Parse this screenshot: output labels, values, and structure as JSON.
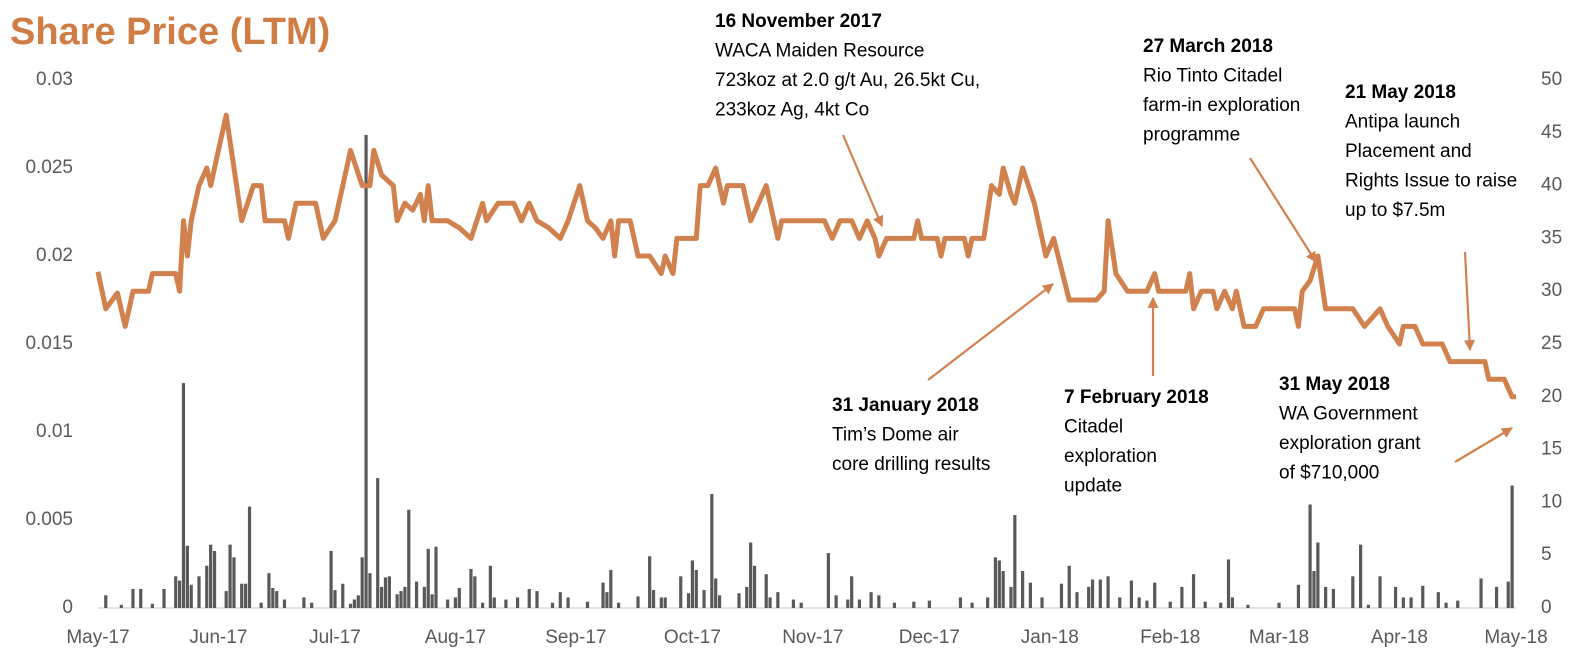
{
  "chart_data": {
    "type": "combo",
    "title": "Share Price (LTM)",
    "title_color": "#d07d45",
    "xlim": [
      0,
      365
    ],
    "xticks": [
      {
        "value": 0,
        "label": "May-17"
      },
      {
        "value": 31,
        "label": "Jun-17"
      },
      {
        "value": 61,
        "label": "Jul-17"
      },
      {
        "value": 92,
        "label": "Aug-17"
      },
      {
        "value": 123,
        "label": "Sep-17"
      },
      {
        "value": 153,
        "label": "Oct-17"
      },
      {
        "value": 184,
        "label": "Nov-17"
      },
      {
        "value": 214,
        "label": "Dec-17"
      },
      {
        "value": 245,
        "label": "Jan-18"
      },
      {
        "value": 276,
        "label": "Feb-18"
      },
      {
        "value": 304,
        "label": "Mar-18"
      },
      {
        "value": 335,
        "label": "Apr-18"
      },
      {
        "value": 365,
        "label": "May-18"
      }
    ],
    "ylim": [
      0,
      0.03
    ],
    "yticks": [
      0,
      0.005,
      0.01,
      0.015,
      0.02,
      0.025,
      0.03
    ],
    "y2lim": [
      0,
      50
    ],
    "y2ticks": [
      0,
      5,
      10,
      15,
      20,
      25,
      30,
      35,
      40,
      45,
      50
    ],
    "series": [
      {
        "type": "line",
        "color": "#d0814e",
        "x": [
          0,
          2,
          5,
          7,
          9,
          13,
          14,
          20,
          21,
          22,
          23,
          24,
          26,
          28,
          29,
          31,
          33,
          35,
          37,
          40,
          42,
          43,
          48,
          49,
          51,
          56,
          58,
          61,
          63,
          65,
          68,
          70,
          71,
          73,
          76,
          77,
          79,
          81,
          83,
          84,
          85,
          86,
          90,
          93,
          96,
          99,
          100,
          103,
          107,
          109,
          111,
          113,
          116,
          119,
          121,
          124,
          126,
          128,
          130,
          132,
          133,
          134,
          137,
          139,
          142,
          145,
          146,
          148,
          149,
          154,
          155,
          157,
          159,
          161,
          162,
          166,
          168,
          172,
          175,
          176,
          187,
          189,
          191,
          194,
          196,
          198,
          200,
          201,
          203,
          210,
          211,
          212,
          216,
          217,
          218,
          223,
          224,
          225,
          228,
          230,
          232,
          233,
          235,
          236,
          238,
          241,
          244,
          246,
          250,
          257,
          259,
          260,
          262,
          265,
          270,
          272,
          273,
          280,
          281,
          282,
          284,
          287,
          288,
          290,
          292,
          293,
          295,
          298,
          300,
          308,
          309,
          310,
          312,
          314,
          316,
          323,
          326,
          330,
          332,
          335,
          336,
          339,
          341,
          346,
          348,
          357,
          358,
          362,
          364,
          365
        ],
        "values": [
          0.0191,
          0.017,
          0.0179,
          0.016,
          0.018,
          0.018,
          0.019,
          0.019,
          0.018,
          0.022,
          0.02,
          0.022,
          0.024,
          0.025,
          0.024,
          0.026,
          0.028,
          0.025,
          0.022,
          0.024,
          0.024,
          0.022,
          0.022,
          0.021,
          0.023,
          0.023,
          0.021,
          0.022,
          0.024,
          0.026,
          0.024,
          0.024,
          0.026,
          0.0246,
          0.024,
          0.022,
          0.023,
          0.0226,
          0.0235,
          0.022,
          0.024,
          0.022,
          0.022,
          0.0216,
          0.021,
          0.023,
          0.022,
          0.023,
          0.023,
          0.022,
          0.023,
          0.022,
          0.0216,
          0.021,
          0.022,
          0.024,
          0.022,
          0.0216,
          0.021,
          0.022,
          0.02,
          0.022,
          0.022,
          0.02,
          0.02,
          0.019,
          0.02,
          0.019,
          0.021,
          0.021,
          0.024,
          0.024,
          0.025,
          0.023,
          0.024,
          0.024,
          0.022,
          0.024,
          0.021,
          0.022,
          0.022,
          0.021,
          0.022,
          0.022,
          0.021,
          0.022,
          0.021,
          0.02,
          0.021,
          0.021,
          0.022,
          0.021,
          0.021,
          0.02,
          0.021,
          0.021,
          0.02,
          0.021,
          0.021,
          0.024,
          0.0235,
          0.025,
          0.0235,
          0.023,
          0.025,
          0.023,
          0.02,
          0.021,
          0.0175,
          0.0175,
          0.018,
          0.022,
          0.019,
          0.018,
          0.018,
          0.019,
          0.018,
          0.018,
          0.019,
          0.017,
          0.018,
          0.018,
          0.017,
          0.018,
          0.017,
          0.018,
          0.016,
          0.016,
          0.017,
          0.017,
          0.016,
          0.018,
          0.0186,
          0.02,
          0.017,
          0.017,
          0.016,
          0.017,
          0.016,
          0.015,
          0.016,
          0.016,
          0.015,
          0.015,
          0.014,
          0.014,
          0.013,
          0.013,
          0.012,
          0.012
        ]
      },
      {
        "type": "bar",
        "axis": "y2",
        "color": "#595959",
        "x": [
          2,
          6,
          9,
          11,
          14,
          17,
          20,
          21,
          22,
          23,
          24,
          26,
          28,
          29,
          30,
          33,
          34,
          35,
          37,
          38,
          39,
          42,
          44,
          45,
          46,
          48,
          53,
          55,
          60,
          61,
          63,
          65,
          66,
          67,
          68,
          69,
          70,
          72,
          73,
          74,
          75,
          77,
          78,
          79,
          80,
          82,
          84,
          85,
          86,
          87,
          90,
          92,
          93,
          96,
          97,
          99,
          101,
          102,
          105,
          108,
          111,
          113,
          117,
          119,
          121,
          126,
          130,
          131,
          132,
          134,
          139,
          142,
          143,
          145,
          146,
          150,
          152,
          153,
          154,
          156,
          158,
          159,
          160,
          165,
          167,
          168,
          169,
          172,
          173,
          175,
          179,
          181,
          188,
          190,
          193,
          194,
          196,
          199,
          201,
          205,
          210,
          214,
          222,
          225,
          229,
          231,
          232,
          233,
          235,
          236,
          238,
          240,
          243,
          248,
          250,
          252,
          255,
          256,
          258,
          260,
          263,
          266,
          268,
          270,
          272,
          276,
          279,
          282,
          285,
          289,
          291,
          292,
          296,
          304,
          309,
          312,
          313,
          314,
          316,
          318,
          323,
          325,
          327,
          330,
          334,
          336,
          338,
          341,
          345,
          347,
          350,
          356,
          360,
          363,
          364
        ],
        "values": [
          1.2,
          0.3,
          1.8,
          1.8,
          0.4,
          1.8,
          3.0,
          2.6,
          21.3,
          5.9,
          2.2,
          3.0,
          4.0,
          6.0,
          5.4,
          1.6,
          6.0,
          4.8,
          2.3,
          2.3,
          9.6,
          0.5,
          3.3,
          1.9,
          1.6,
          0.8,
          1.0,
          0.5,
          5.4,
          1.7,
          2.3,
          0.4,
          0.8,
          1.2,
          4.8,
          44.8,
          3.3,
          12.3,
          2.0,
          2.9,
          3.0,
          1.3,
          1.6,
          2.0,
          9.3,
          2.5,
          2.0,
          5.6,
          1.3,
          5.8,
          0.8,
          1.0,
          1.9,
          3.7,
          3.0,
          0.5,
          4.0,
          1.0,
          0.8,
          1.0,
          1.8,
          1.6,
          0.5,
          1.5,
          1.0,
          0.6,
          2.4,
          1.5,
          3.6,
          0.5,
          1.1,
          4.9,
          1.7,
          1.0,
          1.0,
          3.0,
          1.4,
          4.5,
          3.6,
          1.7,
          10.8,
          2.8,
          1.2,
          1.4,
          2.0,
          6.2,
          4.0,
          3.2,
          1.0,
          1.5,
          0.8,
          0.5,
          5.2,
          1.2,
          0.8,
          3.0,
          0.8,
          1.5,
          1.2,
          0.5,
          0.6,
          0.7,
          1.0,
          0.5,
          1.0,
          4.8,
          4.5,
          3.5,
          2.0,
          8.8,
          3.5,
          2.4,
          1.0,
          2.3,
          4.0,
          1.5,
          2.0,
          2.7,
          2.7,
          3.0,
          1.0,
          2.6,
          1.0,
          0.7,
          2.4,
          0.6,
          2.0,
          3.2,
          0.6,
          0.5,
          4.6,
          1.0,
          0.3,
          0.5,
          2.2,
          9.8,
          3.5,
          6.2,
          2.0,
          1.8,
          3.0,
          6.0,
          0.3,
          3.0,
          2.0,
          1.0,
          1.0,
          2.1,
          1.5,
          0.5,
          0.7,
          2.8,
          2.0,
          2.5,
          11.6
        ]
      }
    ],
    "annotations": [
      {
        "title": "16 November 2017",
        "lines": [
          "WACA Maiden Resource",
          "723koz at 2.0 g/t Au, 26.5kt Cu,",
          "233koz Ag, 4kt Co"
        ]
      },
      {
        "title": "27 March 2018",
        "lines": [
          "Rio Tinto Citadel",
          "farm-in exploration",
          "programme"
        ]
      },
      {
        "title": "21 May 2018",
        "lines": [
          "Antipa launch",
          "Placement and",
          "Rights Issue to raise",
          "up to $7.5m"
        ]
      },
      {
        "title": "31 January 2018",
        "lines": [
          "Tim’s Dome air",
          "core drilling results"
        ]
      },
      {
        "title": "7 February 2018",
        "lines": [
          "Citadel",
          "exploration",
          "update"
        ]
      },
      {
        "title": "31 May 2018",
        "lines": [
          "WA Government",
          "exploration grant",
          "of $710,000"
        ]
      }
    ]
  }
}
